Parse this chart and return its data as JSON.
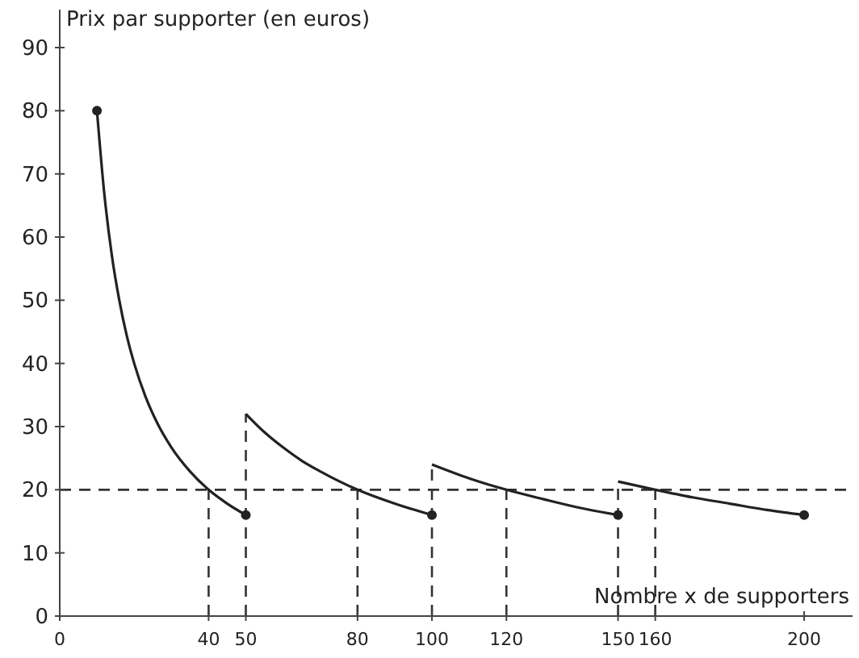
{
  "chart_data": {
    "type": "line",
    "xlabel": "Nombre x de supporters",
    "ylabel": "Prix par supporter (en euros)",
    "xlim": [
      0,
      213
    ],
    "ylim": [
      0,
      96
    ],
    "xticks": [
      0,
      40,
      50,
      80,
      100,
      120,
      150,
      160,
      200
    ],
    "yticks": [
      0,
      10,
      20,
      30,
      40,
      50,
      60,
      70,
      80,
      90
    ],
    "grid": false,
    "marker": "none",
    "line_style": "solid",
    "series": [
      {
        "color": "#222222",
        "x": [
          10,
          12,
          14,
          16,
          18,
          20,
          23,
          26,
          30,
          35,
          40,
          45,
          50
        ],
        "values": [
          80,
          66.7,
          57.1,
          50,
          44.4,
          40,
          34.8,
          30.8,
          26.7,
          22.9,
          20,
          17.8,
          16
        ]
      },
      {
        "color": "#222222",
        "x": [
          50,
          55,
          60,
          65,
          70,
          80,
          90,
          100
        ],
        "values": [
          32,
          29.1,
          26.7,
          24.6,
          22.9,
          20,
          17.8,
          16
        ]
      },
      {
        "color": "#222222",
        "x": [
          100,
          110,
          120,
          130,
          140,
          150
        ],
        "values": [
          24,
          21.8,
          20,
          18.5,
          17.1,
          16
        ]
      },
      {
        "color": "#222222",
        "x": [
          150,
          160,
          170,
          180,
          190,
          200
        ],
        "values": [
          21.3,
          20,
          18.8,
          17.8,
          16.8,
          16
        ]
      },
      {
        "type": "scatter",
        "color": "#222222",
        "marker": "circle",
        "x": [
          10,
          50,
          100,
          150,
          200
        ],
        "values": [
          80,
          16,
          16,
          16,
          16
        ]
      }
    ],
    "ref_lines": [
      {
        "axis": "y",
        "value": 20,
        "line_style": "dashed",
        "color": "#333333"
      },
      {
        "axis": "x",
        "value": 40,
        "line_style": "dashed",
        "color": "#333333"
      },
      {
        "axis": "x",
        "value": 50,
        "line_style": "dashed",
        "color": "#333333"
      },
      {
        "axis": "x",
        "value": 80,
        "line_style": "dashed",
        "color": "#333333"
      },
      {
        "axis": "x",
        "value": 100,
        "line_style": "dashed",
        "color": "#333333"
      },
      {
        "axis": "x",
        "value": 120,
        "line_style": "dashed",
        "color": "#333333"
      },
      {
        "axis": "x",
        "value": 150,
        "line_style": "dashed",
        "color": "#333333"
      },
      {
        "axis": "x",
        "value": 160,
        "line_style": "dashed",
        "color": "#333333"
      }
    ]
  }
}
